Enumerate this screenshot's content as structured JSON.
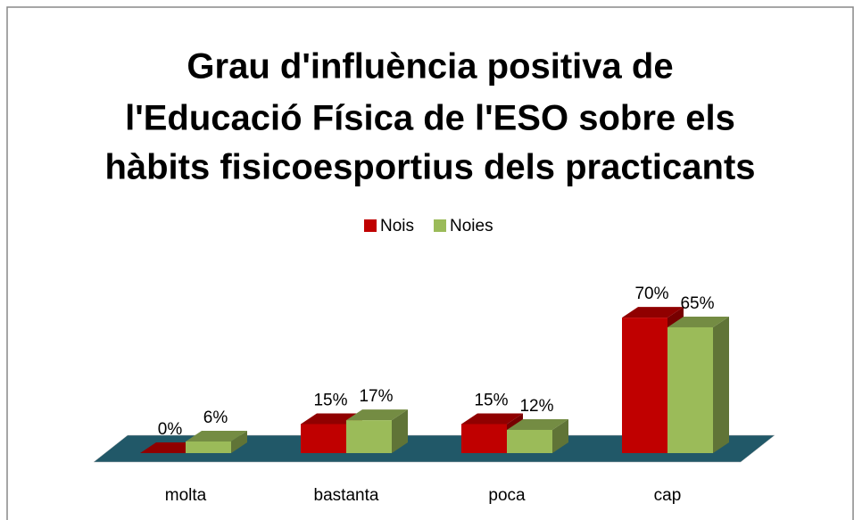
{
  "chart_data": {
    "type": "bar",
    "title": [
      "Grau d'influència positiva de",
      "l'Educació Física de l'ESO sobre els",
      "hàbits fisicoesportius dels practicants"
    ],
    "categories": [
      "molta",
      "bastanta",
      "poca",
      "cap"
    ],
    "series": [
      {
        "name": "Nois",
        "color": "#c00000",
        "values": [
          0,
          15,
          15,
          70
        ],
        "value_labels": [
          "0%",
          "15%",
          "15%",
          "70%"
        ]
      },
      {
        "name": "Noies",
        "color": "#9bbb59",
        "values": [
          6,
          17,
          12,
          65
        ],
        "value_labels": [
          "6%",
          "17%",
          "12%",
          "65%"
        ]
      }
    ],
    "legend": "top"
  }
}
